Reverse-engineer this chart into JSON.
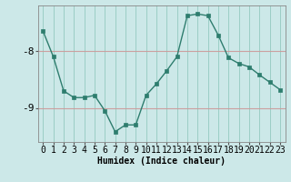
{
  "x": [
    0,
    1,
    2,
    3,
    4,
    5,
    6,
    7,
    8,
    9,
    10,
    11,
    12,
    13,
    14,
    15,
    16,
    17,
    18,
    19,
    20,
    21,
    22,
    23
  ],
  "y": [
    -7.65,
    -8.1,
    -8.7,
    -8.82,
    -8.82,
    -8.78,
    -9.05,
    -9.42,
    -9.3,
    -9.3,
    -8.78,
    -8.58,
    -8.35,
    -8.1,
    -7.38,
    -7.35,
    -7.38,
    -7.72,
    -8.12,
    -8.22,
    -8.28,
    -8.42,
    -8.55,
    -8.68
  ],
  "line_color": "#2e7d6e",
  "marker_color": "#2e7d6e",
  "bg_color": "#cce8e8",
  "grid_color_h": "#cc9999",
  "grid_color_v": "#5aaa99",
  "xlabel": "Humidex (Indice chaleur)",
  "ylim": [
    -9.6,
    -7.2
  ],
  "yticks": [
    -9,
    -8
  ],
  "ytick_labels": [
    "-9",
    "-8"
  ],
  "xlim": [
    -0.5,
    23.5
  ],
  "xlabel_fontsize": 7,
  "tick_fontsize": 7,
  "linewidth": 1.0,
  "markersize": 2.5
}
